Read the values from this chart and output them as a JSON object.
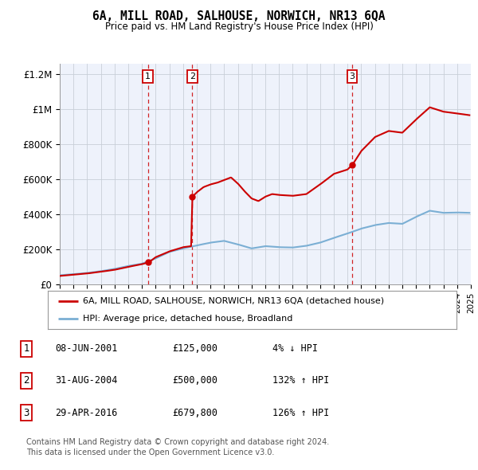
{
  "title": "6A, MILL ROAD, SALHOUSE, NORWICH, NR13 6QA",
  "subtitle": "Price paid vs. HM Land Registry's House Price Index (HPI)",
  "ylabel_ticks": [
    "£0",
    "£200K",
    "£400K",
    "£600K",
    "£800K",
    "£1M",
    "£1.2M"
  ],
  "ytick_values": [
    0,
    200000,
    400000,
    600000,
    800000,
    1000000,
    1200000
  ],
  "ylim": [
    0,
    1260000
  ],
  "sale_color": "#cc0000",
  "hpi_color": "#7bafd4",
  "sale_label": "6A, MILL ROAD, SALHOUSE, NORWICH, NR13 6QA (detached house)",
  "hpi_label": "HPI: Average price, detached house, Broadland",
  "transactions": [
    {
      "num": 1,
      "date": "08-JUN-2001",
      "price": "125,000",
      "pct": "4%",
      "dir": "↓",
      "year": 2001.44,
      "price_val": 125000
    },
    {
      "num": 2,
      "date": "31-AUG-2004",
      "price": "500,000",
      "pct": "132%",
      "dir": "↑",
      "year": 2004.67,
      "price_val": 500000
    },
    {
      "num": 3,
      "date": "29-APR-2016",
      "price": "679,800",
      "pct": "126%",
      "dir": "↑",
      "year": 2016.33,
      "price_val": 679800
    }
  ],
  "footnote1": "Contains HM Land Registry data © Crown copyright and database right 2024.",
  "footnote2": "This data is licensed under the Open Government Licence v3.0.",
  "background_color": "#ffffff",
  "plot_bg_color": "#eef2fb",
  "grid_color": "#c8cfd8",
  "vline_color": "#cc0000",
  "hpi_anchors_x": [
    1995.0,
    1996.0,
    1997.0,
    1998.0,
    1999.0,
    2000.0,
    2001.0,
    2002.0,
    2003.0,
    2004.0,
    2005.0,
    2006.0,
    2007.0,
    2008.0,
    2009.0,
    2010.0,
    2011.0,
    2012.0,
    2013.0,
    2014.0,
    2015.0,
    2016.0,
    2017.0,
    2018.0,
    2019.0,
    2020.0,
    2021.0,
    2022.0,
    2023.0,
    2024.0,
    2024.9
  ],
  "hpi_anchors_y": [
    52000,
    58000,
    65000,
    75000,
    88000,
    105000,
    118000,
    148000,
    185000,
    205000,
    222000,
    238000,
    248000,
    228000,
    205000,
    218000,
    212000,
    210000,
    220000,
    238000,
    265000,
    290000,
    318000,
    338000,
    350000,
    345000,
    385000,
    420000,
    408000,
    410000,
    408000
  ],
  "sale_anchors_x": [
    1995.0,
    1996.0,
    1997.0,
    1998.0,
    1999.0,
    2000.0,
    2001.0,
    2001.44,
    2001.5,
    2002.0,
    2003.0,
    2004.0,
    2004.6,
    2004.67,
    2004.68,
    2005.0,
    2005.5,
    2006.0,
    2006.5,
    2007.0,
    2007.5,
    2008.0,
    2008.5,
    2009.0,
    2009.5,
    2010.0,
    2010.5,
    2011.0,
    2012.0,
    2013.0,
    2014.0,
    2015.0,
    2016.0,
    2016.33,
    2016.34,
    2017.0,
    2018.0,
    2019.0,
    2020.0,
    2021.0,
    2022.0,
    2023.0,
    2024.0,
    2024.9
  ],
  "sale_anchors_y": [
    48000,
    55000,
    62000,
    72000,
    83000,
    100000,
    115000,
    125000,
    125000,
    155000,
    188000,
    212000,
    218000,
    500000,
    500000,
    525000,
    555000,
    570000,
    580000,
    595000,
    610000,
    575000,
    530000,
    490000,
    475000,
    500000,
    515000,
    510000,
    505000,
    515000,
    570000,
    630000,
    655000,
    679800,
    679800,
    760000,
    840000,
    875000,
    865000,
    940000,
    1010000,
    985000,
    975000,
    965000
  ]
}
